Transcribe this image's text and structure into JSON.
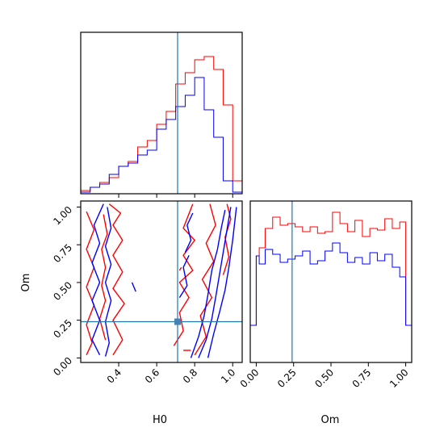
{
  "chart_data": {
    "type": "corner",
    "parameters": [
      "H0",
      "Om"
    ],
    "truths": {
      "H0": 0.71,
      "Om": 0.24
    },
    "truth_point_color": "#4682b4",
    "truth_color": "#1f77b4",
    "series": [
      {
        "color": "#ff0000"
      },
      {
        "color": "#0000ff"
      }
    ],
    "panels": {
      "h0_hist": {
        "x_range": [
          0.2,
          1.05
        ],
        "bin_edges": [
          0.2,
          0.25,
          0.3,
          0.35,
          0.4,
          0.45,
          0.5,
          0.55,
          0.6,
          0.65,
          0.7,
          0.75,
          0.8,
          0.85,
          0.9,
          0.95,
          1.0,
          1.05
        ],
        "red_counts": [
          0.02,
          0.04,
          0.07,
          0.1,
          0.17,
          0.2,
          0.29,
          0.33,
          0.43,
          0.51,
          0.68,
          0.75,
          0.83,
          0.85,
          0.77,
          0.55,
          0.08
        ],
        "blue_counts": [
          0.01,
          0.04,
          0.06,
          0.12,
          0.17,
          0.19,
          0.24,
          0.27,
          0.4,
          0.46,
          0.54,
          0.61,
          0.72,
          0.52,
          0.35,
          0.08,
          0.01
        ],
        "y_max": 1.0
      },
      "om_hist": {
        "x_range": [
          -0.04,
          1.04
        ],
        "x_ticks": [
          0.0,
          0.25,
          0.5,
          0.75,
          1.0
        ],
        "x_tick_labels": [
          "0.00",
          "0.25",
          "0.50",
          "0.75",
          "1.00"
        ],
        "xlabel": "Om",
        "bin_edges": [
          -0.04,
          0.0,
          0.02,
          0.06,
          0.11,
          0.16,
          0.21,
          0.26,
          0.31,
          0.36,
          0.41,
          0.46,
          0.51,
          0.56,
          0.61,
          0.66,
          0.71,
          0.76,
          0.81,
          0.86,
          0.91,
          0.96,
          1.0,
          1.04
        ],
        "red_counts": [
          0.23,
          0.66,
          0.71,
          0.83,
          0.9,
          0.85,
          0.86,
          0.84,
          0.81,
          0.84,
          0.8,
          0.81,
          0.93,
          0.86,
          0.81,
          0.88,
          0.78,
          0.83,
          0.82,
          0.89,
          0.83,
          0.87,
          0.23
        ],
        "blue_counts": [
          0.23,
          0.66,
          0.61,
          0.7,
          0.67,
          0.62,
          0.64,
          0.66,
          0.69,
          0.61,
          0.63,
          0.69,
          0.74,
          0.68,
          0.62,
          0.65,
          0.61,
          0.68,
          0.63,
          0.67,
          0.59,
          0.53,
          0.23
        ],
        "y_max": 1.0
      },
      "scatter": {
        "x_range": [
          0.2,
          1.05
        ],
        "y_range": [
          -0.03,
          1.04
        ],
        "x_ticks": [
          0.4,
          0.6,
          0.8,
          1.0
        ],
        "x_tick_labels": [
          "0.4",
          "0.6",
          "0.8",
          "1.0"
        ],
        "y_ticks": [
          0.0,
          0.25,
          0.5,
          0.75,
          1.0
        ],
        "y_tick_labels": [
          "0.00",
          "0.25",
          "0.50",
          "0.75",
          "1.00"
        ],
        "xlabel": "H0",
        "ylabel": "Om",
        "red_contours": [
          [
            [
              0.23,
              0.97
            ],
            [
              0.27,
              0.85
            ],
            [
              0.23,
              0.72
            ],
            [
              0.27,
              0.6
            ],
            [
              0.23,
              0.47
            ],
            [
              0.27,
              0.35
            ],
            [
              0.23,
              0.22
            ],
            [
              0.26,
              0.1
            ],
            [
              0.23,
              0.02
            ]
          ],
          [
            [
              0.35,
              1.02
            ],
            [
              0.41,
              0.96
            ],
            [
              0.37,
              0.88
            ],
            [
              0.42,
              0.78
            ],
            [
              0.37,
              0.68
            ],
            [
              0.42,
              0.57
            ],
            [
              0.37,
              0.46
            ],
            [
              0.43,
              0.36
            ],
            [
              0.37,
              0.25
            ],
            [
              0.42,
              0.12
            ],
            [
              0.37,
              0.02
            ]
          ],
          [
            [
              0.32,
              0.95
            ],
            [
              0.34,
              0.82
            ],
            [
              0.31,
              0.72
            ],
            [
              0.33,
              0.6
            ],
            [
              0.31,
              0.48
            ],
            [
              0.33,
              0.38
            ],
            [
              0.3,
              0.26
            ],
            [
              0.33,
              0.12
            ]
          ],
          [
            [
              0.69,
              0.08
            ],
            [
              0.74,
              0.18
            ],
            [
              0.72,
              0.3
            ],
            [
              0.77,
              0.4
            ],
            [
              0.72,
              0.5
            ],
            [
              0.79,
              0.58
            ],
            [
              0.74,
              0.68
            ],
            [
              0.8,
              0.78
            ],
            [
              0.74,
              0.86
            ],
            [
              0.79,
              1.02
            ]
          ],
          [
            [
              0.8,
              0.02
            ],
            [
              0.86,
              0.14
            ],
            [
              0.83,
              0.28
            ],
            [
              0.89,
              0.4
            ],
            [
              0.84,
              0.52
            ],
            [
              0.9,
              0.64
            ],
            [
              0.86,
              0.76
            ],
            [
              0.91,
              0.88
            ],
            [
              0.88,
              1.02
            ]
          ],
          [
            [
              0.95,
              0.55
            ],
            [
              0.98,
              0.67
            ],
            [
              0.96,
              0.8
            ],
            [
              0.99,
              0.92
            ],
            [
              0.97,
              1.02
            ]
          ],
          [
            [
              0.74,
              0.05
            ],
            [
              0.78,
              0.05
            ]
          ],
          [
            [
              0.72,
              0.58
            ],
            [
              0.73,
              0.6
            ]
          ]
        ],
        "blue_contours": [
          [
            [
              0.32,
              1.02
            ],
            [
              0.27,
              0.88
            ],
            [
              0.3,
              0.76
            ],
            [
              0.26,
              0.63
            ],
            [
              0.3,
              0.5
            ],
            [
              0.26,
              0.38
            ],
            [
              0.3,
              0.25
            ],
            [
              0.26,
              0.12
            ],
            [
              0.3,
              0.02
            ]
          ],
          [
            [
              0.34,
              1.0
            ],
            [
              0.36,
              0.86
            ],
            [
              0.33,
              0.74
            ],
            [
              0.36,
              0.62
            ],
            [
              0.33,
              0.5
            ],
            [
              0.36,
              0.38
            ],
            [
              0.33,
              0.24
            ],
            [
              0.35,
              0.1
            ],
            [
              0.33,
              0.01
            ]
          ],
          [
            [
              0.75,
              0.7
            ],
            [
              0.78,
              0.78
            ],
            [
              0.76,
              0.88
            ],
            [
              0.79,
              0.96
            ]
          ],
          [
            [
              0.82,
              0.0
            ],
            [
              0.86,
              0.12
            ],
            [
              0.89,
              0.26
            ],
            [
              0.91,
              0.4
            ],
            [
              0.93,
              0.55
            ],
            [
              0.95,
              0.7
            ],
            [
              0.97,
              0.85
            ],
            [
              0.99,
              1.0
            ]
          ],
          [
            [
              0.78,
              0.0
            ],
            [
              0.82,
              0.14
            ],
            [
              0.85,
              0.28
            ],
            [
              0.87,
              0.42
            ],
            [
              0.89,
              0.58
            ],
            [
              0.92,
              0.72
            ],
            [
              0.94,
              0.86
            ],
            [
              0.96,
              0.98
            ]
          ],
          [
            [
              0.87,
              0.0
            ],
            [
              0.9,
              0.16
            ],
            [
              0.93,
              0.3
            ],
            [
              0.96,
              0.45
            ],
            [
              0.98,
              0.6
            ],
            [
              1.0,
              0.78
            ],
            [
              1.02,
              1.0
            ]
          ],
          [
            [
              0.72,
              0.4
            ],
            [
              0.76,
              0.48
            ],
            [
              0.74,
              0.6
            ],
            [
              0.77,
              0.68
            ]
          ],
          [
            [
              0.47,
              0.5
            ],
            [
              0.49,
              0.44
            ]
          ]
        ]
      }
    }
  }
}
